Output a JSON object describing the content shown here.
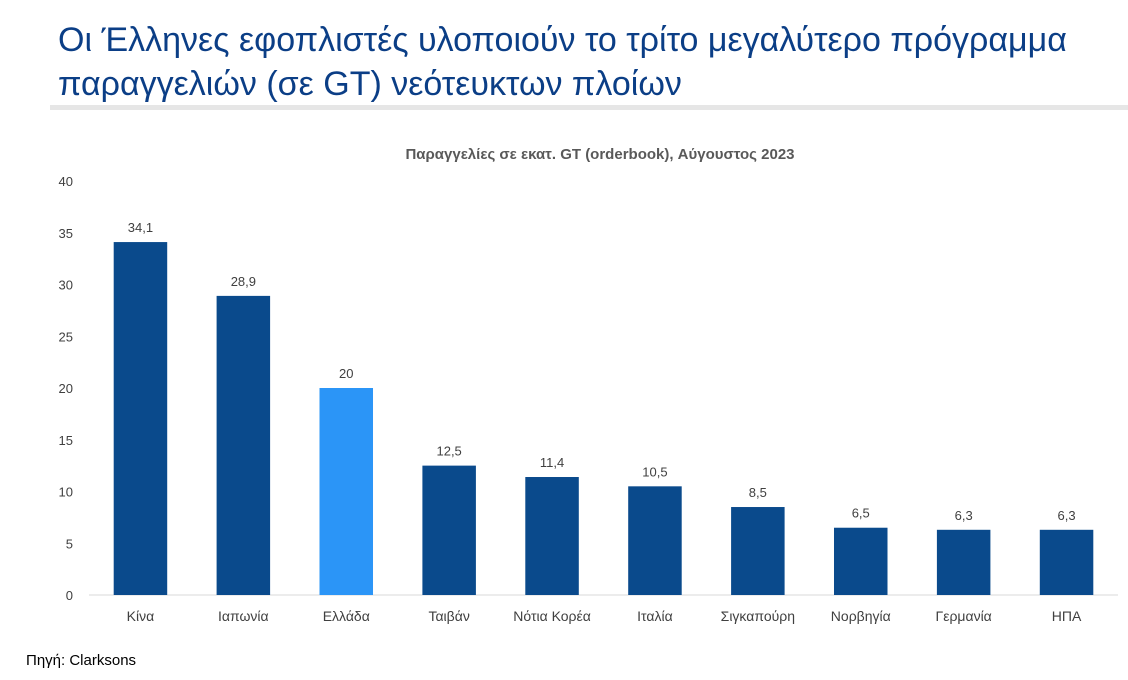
{
  "slide": {
    "title": "Οι Έλληνες εφοπλιστές υλοποιούν το τρίτο μεγαλύτερο πρόγραμμα παραγγελιών (σε GT) νεότευκτων πλοίων",
    "source": "Πηγή: Clarksons"
  },
  "chart_data": {
    "type": "bar",
    "title": "Παραγγελίες σε εκατ. GT (orderbook), Αύγουστος 2023",
    "categories": [
      "Κίνα",
      "Ιαπωνία",
      "Ελλάδα",
      "Ταιβάν",
      "Νότια Κορέα",
      "Ιταλία",
      "Σιγκαπούρη",
      "Νορβηγία",
      "Γερμανία",
      "ΗΠΑ"
    ],
    "values": [
      34.1,
      28.9,
      20,
      12.5,
      11.4,
      10.5,
      8.5,
      6.5,
      6.3,
      6.3
    ],
    "value_labels": [
      "34,1",
      "28,9",
      "20",
      "12,5",
      "11,4",
      "10,5",
      "8,5",
      "6,5",
      "6,3",
      "6,3"
    ],
    "highlight_index": 2,
    "colors": {
      "default": "#0a4a8c",
      "highlight": "#2b95f7"
    },
    "ylim": [
      0,
      40
    ],
    "yticks": [
      0,
      5,
      10,
      15,
      20,
      25,
      30,
      35,
      40
    ],
    "xlabel": "",
    "ylabel": "",
    "grid": false
  }
}
